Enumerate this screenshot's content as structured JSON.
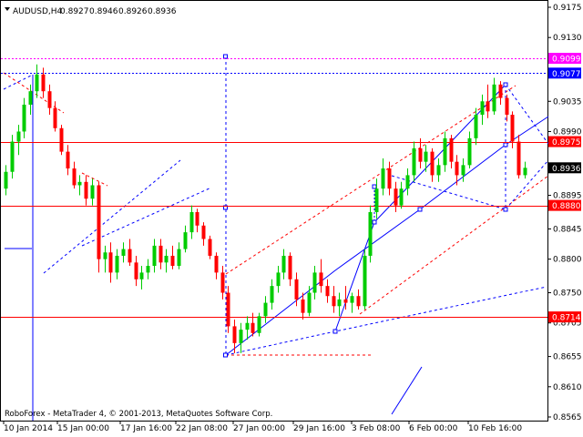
{
  "chart_data": {
    "type": "candlestick",
    "header": {
      "symbol": "AUDUSD,H4",
      "values": [
        "0.8927",
        "0.8946",
        "0.8926",
        "0.8936"
      ]
    },
    "footer": "RoboForex - MetaTrader 4, © 2001-2013, MetaQuotes Software Corp.",
    "ylim": [
      0.8565,
      0.9175
    ],
    "y_ticks": [
      "0.9175",
      "0.9130",
      "0.9075",
      "0.9035",
      "0.8990",
      "0.8936",
      "0.8895",
      "0.8845",
      "0.8800",
      "0.8750",
      "0.8705",
      "0.8655",
      "0.8610",
      "0.8565"
    ],
    "x_ticks": [
      "10 Jan 2014",
      "15 Jan 00:00",
      "17 Jan 16:00",
      "22 Jan 08:00",
      "27 Jan 00:00",
      "29 Jan 16:00",
      "3 Feb 08:00",
      "6 Feb 00:00",
      "10 Feb 16:00"
    ],
    "levels": [
      {
        "label": "0.9099",
        "value": 0.9099,
        "color": "#ff00ff",
        "style": "dotted"
      },
      {
        "label": "0.9077",
        "value": 0.9077,
        "color": "#0000ff",
        "style": "dotted"
      },
      {
        "label": "0.8975",
        "value": 0.8975,
        "color": "#ff0000",
        "style": "solid"
      },
      {
        "label": "0.8936",
        "value": 0.8936,
        "color": "#000000",
        "style": "current"
      },
      {
        "label": "0.8880",
        "value": 0.888,
        "color": "#ff0000",
        "style": "solid"
      },
      {
        "label": "0.8714",
        "value": 0.8714,
        "color": "#ff0000",
        "style": "solid"
      }
    ],
    "bull_color": "#00cc00",
    "bear_color": "#ff0000",
    "candles": [
      [
        0.8905,
        0.894,
        0.8895,
        0.893
      ],
      [
        0.893,
        0.8985,
        0.892,
        0.8975
      ],
      [
        0.8975,
        0.9,
        0.8955,
        0.899
      ],
      [
        0.899,
        0.904,
        0.898,
        0.903
      ],
      [
        0.903,
        0.906,
        0.9015,
        0.905
      ],
      [
        0.905,
        0.909,
        0.904,
        0.9075
      ],
      [
        0.9075,
        0.9085,
        0.904,
        0.905
      ],
      [
        0.905,
        0.906,
        0.9015,
        0.9025
      ],
      [
        0.9025,
        0.9035,
        0.899,
        0.8995
      ],
      [
        0.8995,
        0.9,
        0.8955,
        0.896
      ],
      [
        0.896,
        0.897,
        0.8925,
        0.8935
      ],
      [
        0.8935,
        0.8945,
        0.8905,
        0.891
      ],
      [
        0.891,
        0.8925,
        0.8895,
        0.8915
      ],
      [
        0.8915,
        0.8925,
        0.888,
        0.889
      ],
      [
        0.889,
        0.892,
        0.888,
        0.891
      ],
      [
        0.891,
        0.8915,
        0.878,
        0.88
      ],
      [
        0.88,
        0.882,
        0.878,
        0.881
      ],
      [
        0.881,
        0.8825,
        0.8765,
        0.878
      ],
      [
        0.878,
        0.8815,
        0.877,
        0.8805
      ],
      [
        0.8805,
        0.8825,
        0.8795,
        0.8815
      ],
      [
        0.8815,
        0.883,
        0.879,
        0.8795
      ],
      [
        0.8795,
        0.8805,
        0.876,
        0.877
      ],
      [
        0.877,
        0.879,
        0.8755,
        0.878
      ],
      [
        0.878,
        0.88,
        0.877,
        0.879
      ],
      [
        0.879,
        0.883,
        0.878,
        0.882
      ],
      [
        0.882,
        0.883,
        0.8785,
        0.8795
      ],
      [
        0.8795,
        0.8815,
        0.878,
        0.8805
      ],
      [
        0.8805,
        0.882,
        0.8785,
        0.879
      ],
      [
        0.879,
        0.8825,
        0.8785,
        0.8815
      ],
      [
        0.8815,
        0.885,
        0.881,
        0.884
      ],
      [
        0.884,
        0.888,
        0.883,
        0.887
      ],
      [
        0.887,
        0.8875,
        0.884,
        0.885
      ],
      [
        0.885,
        0.8855,
        0.882,
        0.883
      ],
      [
        0.883,
        0.8835,
        0.88,
        0.8805
      ],
      [
        0.8805,
        0.881,
        0.877,
        0.878
      ],
      [
        0.878,
        0.879,
        0.874,
        0.875
      ],
      [
        0.875,
        0.876,
        0.869,
        0.87
      ],
      [
        0.87,
        0.871,
        0.866,
        0.8675
      ],
      [
        0.8675,
        0.8705,
        0.866,
        0.8695
      ],
      [
        0.8695,
        0.8715,
        0.868,
        0.8705
      ],
      [
        0.8705,
        0.872,
        0.8685,
        0.869
      ],
      [
        0.869,
        0.872,
        0.8685,
        0.8715
      ],
      [
        0.8715,
        0.8745,
        0.8705,
        0.8735
      ],
      [
        0.8735,
        0.877,
        0.8725,
        0.876
      ],
      [
        0.876,
        0.879,
        0.875,
        0.878
      ],
      [
        0.878,
        0.8815,
        0.877,
        0.8805
      ],
      [
        0.8805,
        0.881,
        0.876,
        0.877
      ],
      [
        0.877,
        0.878,
        0.873,
        0.874
      ],
      [
        0.874,
        0.875,
        0.871,
        0.872
      ],
      [
        0.872,
        0.876,
        0.8715,
        0.875
      ],
      [
        0.875,
        0.879,
        0.874,
        0.878
      ],
      [
        0.878,
        0.88,
        0.875,
        0.876
      ],
      [
        0.876,
        0.877,
        0.8735,
        0.8745
      ],
      [
        0.8745,
        0.876,
        0.872,
        0.873
      ],
      [
        0.873,
        0.875,
        0.8715,
        0.874
      ],
      [
        0.874,
        0.876,
        0.8725,
        0.8735
      ],
      [
        0.8735,
        0.875,
        0.872,
        0.8745
      ],
      [
        0.8745,
        0.8755,
        0.8725,
        0.873
      ],
      [
        0.873,
        0.8815,
        0.8725,
        0.8805
      ],
      [
        0.8805,
        0.888,
        0.8795,
        0.887
      ],
      [
        0.887,
        0.892,
        0.886,
        0.8905
      ],
      [
        0.8905,
        0.895,
        0.8895,
        0.8935
      ],
      [
        0.8935,
        0.8945,
        0.8895,
        0.8905
      ],
      [
        0.8905,
        0.8915,
        0.887,
        0.888
      ],
      [
        0.888,
        0.8915,
        0.8875,
        0.8905
      ],
      [
        0.8905,
        0.8935,
        0.8895,
        0.8925
      ],
      [
        0.8925,
        0.8975,
        0.8915,
        0.8965
      ],
      [
        0.8965,
        0.898,
        0.8935,
        0.8945
      ],
      [
        0.8945,
        0.897,
        0.893,
        0.896
      ],
      [
        0.896,
        0.8965,
        0.8915,
        0.8925
      ],
      [
        0.8925,
        0.895,
        0.8915,
        0.894
      ],
      [
        0.894,
        0.899,
        0.893,
        0.898
      ],
      [
        0.898,
        0.8985,
        0.8935,
        0.8945
      ],
      [
        0.8945,
        0.8955,
        0.891,
        0.8925
      ],
      [
        0.8925,
        0.895,
        0.8915,
        0.894
      ],
      [
        0.894,
        0.899,
        0.8935,
        0.898
      ],
      [
        0.898,
        0.9025,
        0.897,
        0.9015
      ],
      [
        0.9015,
        0.9045,
        0.9,
        0.9035
      ],
      [
        0.9035,
        0.906,
        0.901,
        0.902
      ],
      [
        0.902,
        0.907,
        0.9015,
        0.906
      ],
      [
        0.906,
        0.9065,
        0.903,
        0.904
      ],
      [
        0.904,
        0.9045,
        0.9005,
        0.9015
      ],
      [
        0.9015,
        0.902,
        0.8965,
        0.8975
      ],
      [
        0.8975,
        0.8985,
        0.892,
        0.8925
      ],
      [
        0.8925,
        0.8945,
        0.892,
        0.8936
      ]
    ]
  }
}
